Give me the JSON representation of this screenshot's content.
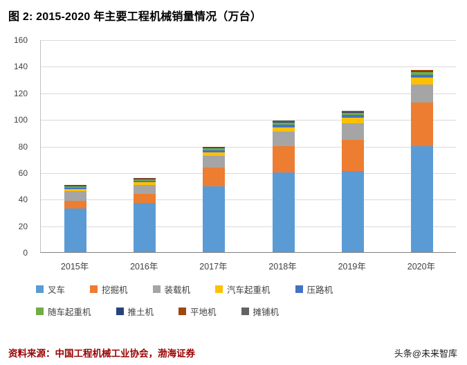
{
  "figure": {
    "title": "图 2:  2015-2020 年主要工程机械销量情况（万台）",
    "source": "资料来源：中国工程机械工业协会，渤海证券",
    "watermark": "头条@未来智库",
    "source_color": "#990000",
    "title_color": "#000000"
  },
  "chart_data": {
    "type": "bar",
    "stacked": true,
    "title": "图 2:  2015-2020 年主要工程机械销量情况（万台）",
    "xlabel": "",
    "ylabel": "",
    "ylim": [
      0,
      160
    ],
    "ytick_step": 20,
    "grid": true,
    "legend_position": "bottom",
    "categories": [
      "2015年",
      "2016年",
      "2017年",
      "2018年",
      "2019年",
      "2020年"
    ],
    "series": [
      {
        "name": "叉车",
        "color": "#5B9BD5",
        "values": [
          33.0,
          37.0,
          49.7,
          59.7,
          60.8,
          80.0
        ]
      },
      {
        "name": "挖掘机",
        "color": "#ED7D31",
        "values": [
          5.6,
          7.0,
          14.0,
          20.3,
          23.6,
          32.8
        ]
      },
      {
        "name": "装载机",
        "color": "#A5A5A5",
        "values": [
          7.4,
          6.6,
          8.7,
          10.7,
          12.3,
          13.1
        ]
      },
      {
        "name": "汽车起重机",
        "color": "#FFC000",
        "values": [
          1.4,
          1.8,
          2.6,
          3.2,
          4.3,
          5.4
        ]
      },
      {
        "name": "压路机",
        "color": "#4472C4",
        "values": [
          1.1,
          1.4,
          1.8,
          2.0,
          2.0,
          2.2
        ]
      },
      {
        "name": "随车起重机",
        "color": "#70AD47",
        "values": [
          0.9,
          1.0,
          1.2,
          1.5,
          1.7,
          2.0
        ]
      },
      {
        "name": "推土机",
        "color": "#264478",
        "values": [
          0.6,
          0.5,
          0.7,
          0.8,
          0.6,
          0.7
        ]
      },
      {
        "name": "平地机",
        "color": "#9E480E",
        "values": [
          0.4,
          0.4,
          0.5,
          0.6,
          0.6,
          0.7
        ]
      },
      {
        "name": "摊铺机",
        "color": "#636363",
        "values": [
          0.2,
          0.2,
          0.3,
          0.3,
          0.3,
          0.3
        ]
      }
    ],
    "legend_rows": [
      [
        0,
        1,
        2,
        3,
        4
      ],
      [
        5,
        6,
        7,
        8
      ]
    ]
  }
}
